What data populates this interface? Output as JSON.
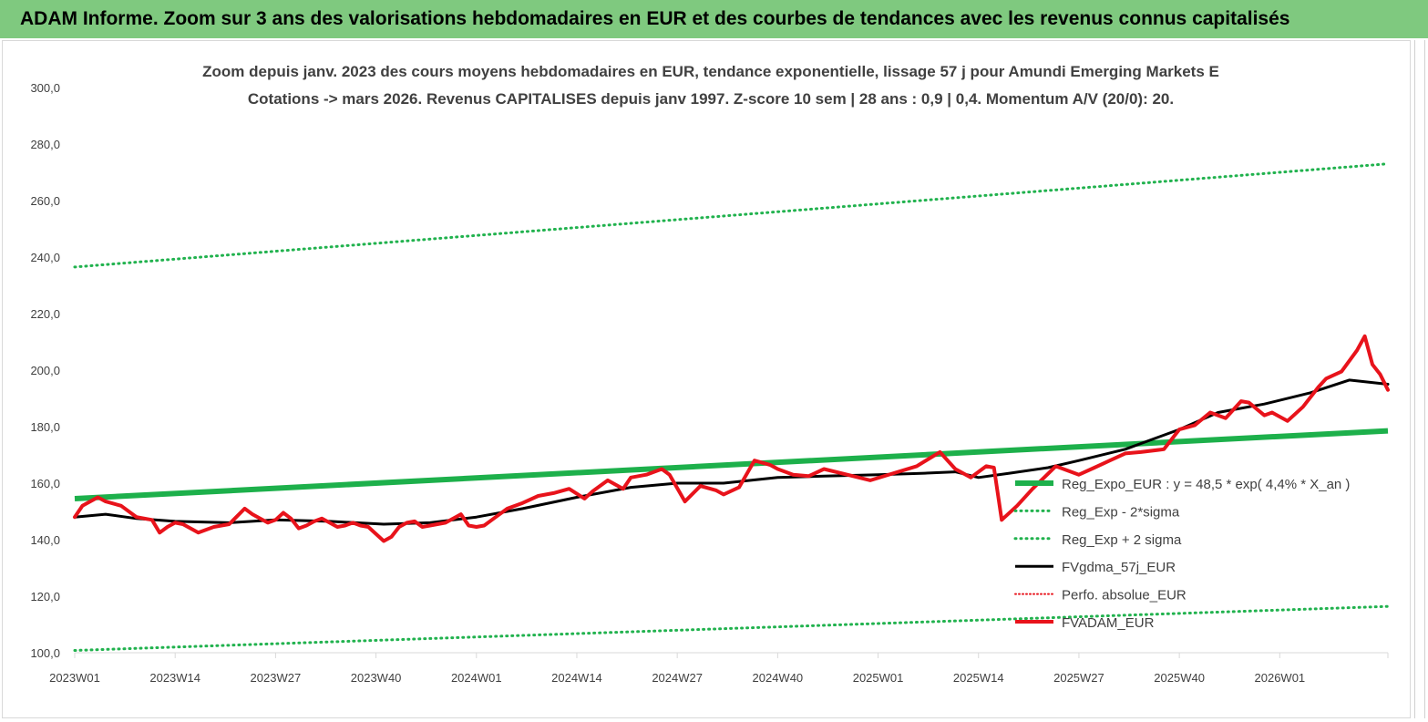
{
  "banner": {
    "title": "ADAM Informe. Zoom sur 3 ans des valorisations hebdomadaires en EUR et des courbes de tendances avec les revenus connus capitalisés"
  },
  "colors": {
    "banner_bg": "#7fc97f",
    "reg_expo": "#1db04b",
    "reg_band": "#21b24e",
    "fvgdma": "#000000",
    "perfo": "#e8131b",
    "fvadam": "#e8131b",
    "axis_text": "#404040"
  },
  "chart_data": {
    "type": "line",
    "title_line1": "Zoom depuis janv. 2023 des cours moyens hebdomadaires en EUR, tendance exponentielle, lissage 57 j pour Amundi Emerging Markets E",
    "title_line2": "Cotations -> mars 2026. Revenus CAPITALISES depuis janv 1997. Z-score 10 sem | 28 ans : 0,9 | 0,4. Momentum A/V (20/0): 20.",
    "xlabel": "",
    "ylabel": "",
    "ylim": [
      100,
      300
    ],
    "y_ticks": [
      "300,0",
      "280,0",
      "260,0",
      "240,0",
      "220,0",
      "200,0",
      "180,0",
      "160,0",
      "140,0",
      "120,0",
      "100,0"
    ],
    "y_tick_values": [
      300,
      280,
      260,
      240,
      220,
      200,
      180,
      160,
      140,
      120,
      100
    ],
    "x_tick_labels": [
      "2023W01",
      "2023W14",
      "2023W27",
      "2023W40",
      "2024W01",
      "2024W14",
      "2024W27",
      "2024W40",
      "2025W01",
      "2025W14",
      "2025W27",
      "2025W40",
      "2026W01"
    ],
    "x_tick_index": [
      0,
      13,
      26,
      39,
      52,
      65,
      78,
      91,
      104,
      117,
      130,
      143,
      156
    ],
    "n_weeks": 171,
    "grid": false,
    "legend_position": "right",
    "legend": [
      {
        "label": "Reg_Expo_EUR : y = 48,5 * exp( 4,4% *  X_an )",
        "style": "thick"
      },
      {
        "label": "Reg_Exp - 2*sigma",
        "style": "dotted-green"
      },
      {
        "label": "Reg_Exp + 2 sigma",
        "style": "dotted-green"
      },
      {
        "label": "FVgdma_57j_EUR",
        "style": "solid-black"
      },
      {
        "label": "Perfo. absolue_EUR",
        "style": "dotted-red"
      },
      {
        "label": "FVADAM_EUR",
        "style": "solid-red"
      }
    ],
    "series": [
      {
        "name": "Reg_Expo_EUR : y = 48,5 * exp( 4,4% *  X_an )",
        "x": [
          0,
          170
        ],
        "values": [
          154.5,
          178.5
        ]
      },
      {
        "name": "Reg_Exp - 2*sigma",
        "x": [
          0,
          170
        ],
        "values": [
          100.8,
          116.4
        ]
      },
      {
        "name": "Reg_Exp + 2 sigma",
        "x": [
          0,
          170
        ],
        "values": [
          236.5,
          273.0
        ]
      },
      {
        "name": "FVgdma_57j_EUR",
        "x": [
          0,
          4,
          8,
          13,
          20,
          26,
          33,
          40,
          46,
          52,
          58,
          65,
          72,
          78,
          84,
          91,
          97,
          104,
          110,
          114,
          117,
          121,
          126,
          130,
          136,
          143,
          148,
          154,
          160,
          165,
          170
        ],
        "values": [
          148,
          149,
          147.5,
          146.5,
          146,
          147,
          146.5,
          145.5,
          146,
          148,
          151,
          155,
          158.5,
          160,
          160,
          162,
          162.5,
          163,
          163.5,
          164,
          162,
          163.5,
          165.5,
          168,
          172,
          179,
          185,
          188,
          192,
          196.5,
          195
        ]
      },
      {
        "name": "FVADAM_EUR",
        "x": [
          0,
          1,
          3,
          4,
          6,
          8,
          10,
          11,
          12,
          13,
          14,
          16,
          17,
          18,
          20,
          22,
          23,
          24,
          25,
          26,
          27,
          28,
          29,
          30,
          31,
          32,
          33,
          34,
          35,
          36,
          37,
          38,
          40,
          41,
          42,
          43,
          44,
          45,
          46,
          48,
          50,
          51,
          52,
          53,
          54,
          56,
          58,
          60,
          62,
          64,
          66,
          67,
          69,
          71,
          72,
          74,
          76,
          77,
          79,
          81,
          83,
          84,
          86,
          88,
          90,
          91,
          93,
          95,
          97,
          100,
          103,
          106,
          109,
          112,
          114,
          116,
          118,
          119,
          120,
          122,
          124,
          127,
          128,
          130,
          132,
          134,
          136,
          138,
          141,
          143,
          145,
          147,
          149,
          151,
          152,
          154,
          155,
          157,
          159,
          161,
          162,
          164,
          166,
          167,
          168,
          169,
          170
        ],
        "values": [
          148,
          152,
          155,
          153.5,
          152,
          148,
          147,
          142.5,
          144.5,
          146,
          145.5,
          142.5,
          143.5,
          144.5,
          145.5,
          151,
          149,
          147.5,
          146,
          147,
          149.5,
          147.5,
          144,
          145,
          146.5,
          147.5,
          146,
          144.5,
          145,
          146,
          145,
          144.5,
          139.5,
          141,
          144.5,
          146,
          146.5,
          144.5,
          145,
          146,
          149,
          145,
          144.5,
          145,
          147,
          151,
          153,
          155.5,
          156.5,
          158,
          154.5,
          157,
          161,
          158,
          162,
          163,
          165,
          163,
          153.5,
          159,
          157.5,
          156,
          158.5,
          168,
          166.5,
          165,
          163,
          162.5,
          165,
          163,
          161,
          163.5,
          166,
          171,
          165,
          162,
          166,
          165.5,
          147,
          152,
          158,
          166,
          165,
          163,
          165.5,
          168,
          170.5,
          171,
          172,
          179,
          180.5,
          185,
          183,
          189,
          188.5,
          184,
          185,
          182,
          187,
          194,
          197,
          199.5,
          207,
          212,
          202,
          198.5,
          193
        ]
      }
    ]
  }
}
